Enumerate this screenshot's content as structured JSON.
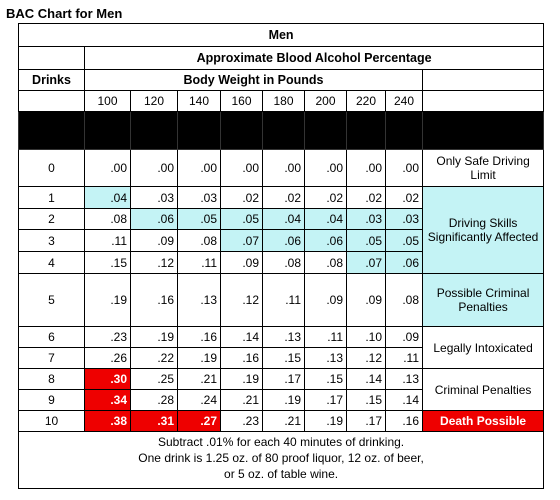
{
  "title": "BAC Chart for Men",
  "table": {
    "group_header": "Men",
    "subheader": "Approximate Blood Alcohol Percentage",
    "drinks_header": "Drinks",
    "weight_header": "Body Weight in Pounds",
    "weights": [
      100,
      120,
      140,
      160,
      180,
      200,
      220,
      240
    ],
    "rows": [
      {
        "drinks": 0,
        "values": [
          ".00",
          ".00",
          ".00",
          ".00",
          ".00",
          ".00",
          ".00",
          ".00"
        ]
      },
      {
        "drinks": 1,
        "values": [
          ".04",
          ".03",
          ".03",
          ".02",
          ".02",
          ".02",
          ".02",
          ".02"
        ]
      },
      {
        "drinks": 2,
        "values": [
          ".08",
          ".06",
          ".05",
          ".05",
          ".04",
          ".04",
          ".03",
          ".03"
        ]
      },
      {
        "drinks": 3,
        "values": [
          ".11",
          ".09",
          ".08",
          ".07",
          ".06",
          ".06",
          ".05",
          ".05"
        ]
      },
      {
        "drinks": 4,
        "values": [
          ".15",
          ".12",
          ".11",
          ".09",
          ".08",
          ".08",
          ".07",
          ".06"
        ]
      },
      {
        "drinks": 5,
        "values": [
          ".19",
          ".16",
          ".13",
          ".12",
          ".11",
          ".09",
          ".09",
          ".08"
        ]
      },
      {
        "drinks": 6,
        "values": [
          ".23",
          ".19",
          ".16",
          ".14",
          ".13",
          ".11",
          ".10",
          ".09"
        ]
      },
      {
        "drinks": 7,
        "values": [
          ".26",
          ".22",
          ".19",
          ".16",
          ".15",
          ".13",
          ".12",
          ".11"
        ]
      },
      {
        "drinks": 8,
        "values": [
          ".30",
          ".25",
          ".21",
          ".19",
          ".17",
          ".15",
          ".14",
          ".13"
        ]
      },
      {
        "drinks": 9,
        "values": [
          ".34",
          ".28",
          ".24",
          ".21",
          ".19",
          ".17",
          ".15",
          ".14"
        ]
      },
      {
        "drinks": 10,
        "values": [
          ".38",
          ".31",
          ".27",
          ".23",
          ".21",
          ".19",
          ".17",
          ".16"
        ]
      }
    ],
    "notes": [
      "Only Safe Driving Limit",
      "Driving Skills Significantly Affected",
      "Possible Criminal Penalties",
      "Legally Intoxicated",
      "Criminal Penalties",
      "Death Possible"
    ]
  },
  "footer": [
    "Subtract .01% for each 40 minutes of drinking.",
    "One drink is 1.25 oz. of 80 proof liquor, 12 oz. of beer,",
    "or 5 oz. of table wine."
  ]
}
